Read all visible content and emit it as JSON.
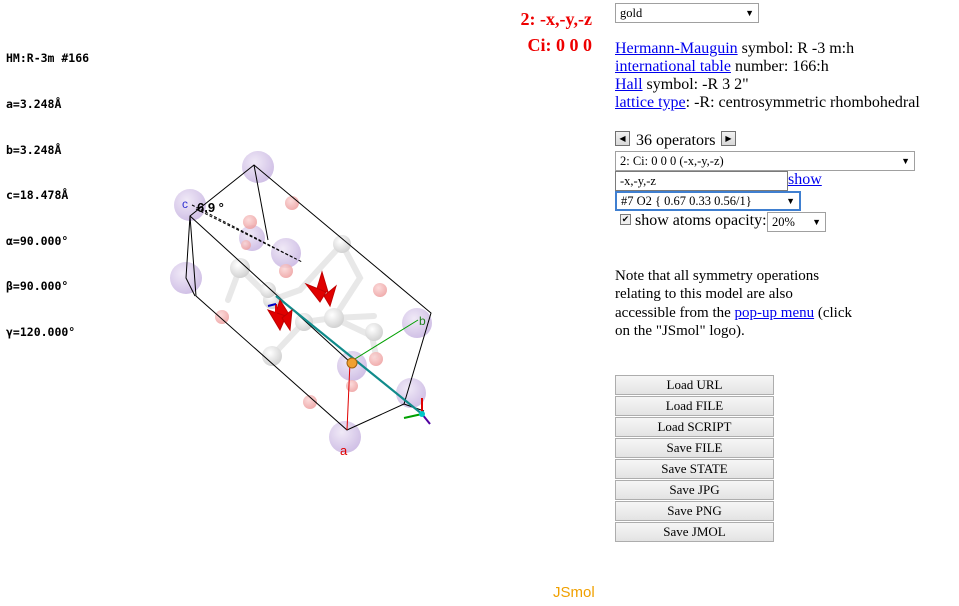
{
  "viewer": {
    "cell_info": [
      "HM:R-3m #166",
      "a=3.248Å",
      "b=3.248Å",
      "c=18.478Å",
      "α=90.000°",
      "β=90.000°",
      "γ=120.000°"
    ],
    "symop_line1": "2: -x,-y,-z",
    "symop_line2": "Ci: 0 0 0",
    "axis_a": "a",
    "axis_b": "b",
    "axis_c": "c",
    "angle_label": "6.9 °",
    "logo": "JSmol"
  },
  "panel": {
    "structure_select": "gold",
    "hm_link": "Hermann-Mauguin",
    "hm_text": " symbol: R -3 m:h",
    "intl_link": "international table",
    "intl_text": " number: 166:h",
    "hall_link": "Hall",
    "hall_text": " symbol: -R 3 2\"",
    "lattice_link": "lattice type",
    "lattice_text": ": -R: centrosymmetric rhombohedral",
    "operators_label": "36 operators",
    "operator_select": "2: Ci: 0 0 0 (-x,-y,-z)",
    "operator_input": "-x,-y,-z",
    "show_link": "show",
    "atom_select": "#7 O2 { 0.67 0.33 0.56/1}",
    "opacity_label": "show atoms opacity:",
    "opacity_select": "20%",
    "note_prefix": "Note that all symmetry operations relating to this model are also accessible from the ",
    "note_link": "pop-up menu",
    "note_suffix": " (click on the \"JSmol\" logo).",
    "buttons": [
      "Load URL",
      "Load FILE",
      "Load SCRIPT",
      "Save FILE",
      "Save STATE",
      "Save JPG",
      "Save PNG",
      "Save JMOL"
    ]
  },
  "colors": {
    "symop_red": "#ee0000",
    "link_blue": "#0000ee",
    "logo_orange": "#f0a000",
    "gold_atom": "#d8c8ec",
    "oxygen_atom": "#f2b0b0"
  }
}
